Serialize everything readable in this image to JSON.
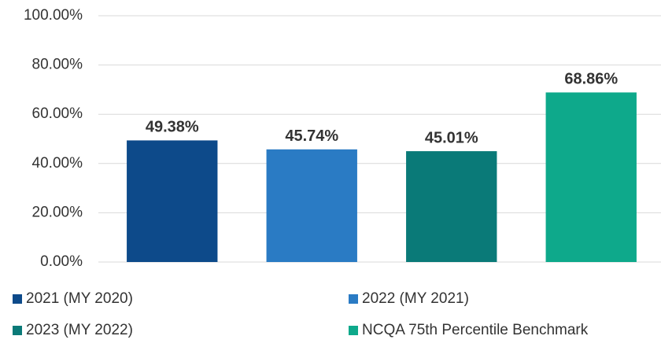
{
  "chart_data": {
    "type": "bar",
    "categories": [
      null
    ],
    "series": [
      {
        "name": "2021 (MY 2020)",
        "color": "#0d4a8a",
        "values": [
          49.38
        ],
        "value_labels": [
          "49.38%"
        ]
      },
      {
        "name": "2022 (MY 2021)",
        "color": "#2a7bc4",
        "values": [
          45.74
        ],
        "value_labels": [
          "45.74%"
        ]
      },
      {
        "name": "2023 (MY 2022)",
        "color": "#0a7a78",
        "values": [
          45.01
        ],
        "value_labels": [
          "45.01%"
        ]
      },
      {
        "name": "NCQA 75th Percentile Benchmark",
        "color": "#0ea98b",
        "values": [
          68.86
        ],
        "value_labels": [
          "68.86%"
        ]
      }
    ],
    "ylim": [
      0,
      100
    ],
    "yticks": [
      {
        "value": 0,
        "label": "0.00%"
      },
      {
        "value": 20,
        "label": "20.00%"
      },
      {
        "value": 40,
        "label": "40.00%"
      },
      {
        "value": 60,
        "label": "60.00%"
      },
      {
        "value": 80,
        "label": "80.00%"
      },
      {
        "value": 100,
        "label": "100.00%"
      }
    ],
    "grid": true,
    "legend": "bottom"
  }
}
